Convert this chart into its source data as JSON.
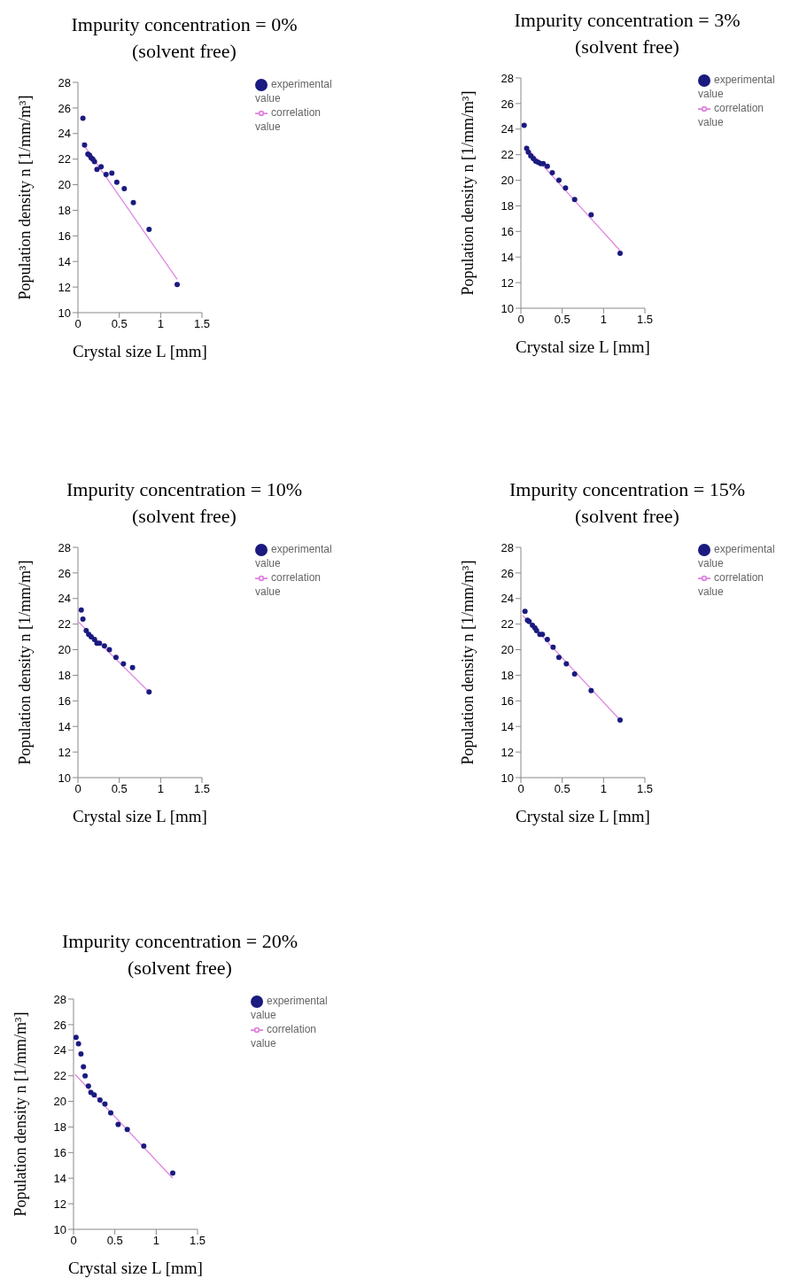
{
  "chart_data": [
    {
      "type": "scatter",
      "title": "Impurity concentration = 0%",
      "subtitle": "(solvent free)",
      "xlabel": "Crystal size L [mm]",
      "ylabel": "Population density n  [1/mm/m³]",
      "xlim": [
        0,
        1.5
      ],
      "xticks": [
        0,
        0.5,
        1,
        1.5
      ],
      "ylim": [
        10,
        28
      ],
      "yticks": [
        10,
        12,
        14,
        16,
        18,
        20,
        22,
        24,
        26,
        28
      ],
      "grid": false,
      "legend": "top right",
      "series": [
        {
          "name": "experimental value",
          "marker": "circle",
          "color": "#1a1a80",
          "x": [
            0.06,
            0.08,
            0.12,
            0.14,
            0.16,
            0.18,
            0.2,
            0.23,
            0.28,
            0.34,
            0.41,
            0.47,
            0.56,
            0.67,
            0.86,
            1.2
          ],
          "values": [
            25.2,
            23.1,
            22.4,
            22.3,
            22.1,
            22.0,
            21.8,
            21.2,
            21.4,
            20.8,
            20.9,
            20.2,
            19.7,
            18.6,
            16.5,
            12.2
          ]
        },
        {
          "name": "correlation value",
          "type": "line",
          "marker": "none",
          "color": "#e080e0",
          "x": [
            0.05,
            1.2
          ],
          "values": [
            23.3,
            12.6
          ]
        }
      ]
    },
    {
      "type": "scatter",
      "title": "Impurity concentration = 3%",
      "subtitle": "(solvent free)",
      "xlabel": "Crystal size L [mm]",
      "ylabel": "Population density n  [1/mm/m³]",
      "xlim": [
        0,
        1.5
      ],
      "xticks": [
        0,
        0.5,
        1,
        1.5
      ],
      "ylim": [
        10,
        28
      ],
      "yticks": [
        10,
        12,
        14,
        16,
        18,
        20,
        22,
        24,
        26,
        28
      ],
      "grid": false,
      "legend": "top right",
      "series": [
        {
          "name": "experimental value",
          "marker": "circle",
          "color": "#1a1a80",
          "x": [
            0.04,
            0.07,
            0.09,
            0.12,
            0.15,
            0.18,
            0.21,
            0.24,
            0.27,
            0.32,
            0.38,
            0.46,
            0.54,
            0.65,
            0.85,
            1.2
          ],
          "values": [
            24.3,
            22.5,
            22.2,
            21.9,
            21.7,
            21.5,
            21.4,
            21.3,
            21.3,
            21.1,
            20.6,
            20.0,
            19.4,
            18.5,
            17.3,
            14.3
          ]
        },
        {
          "name": "correlation value",
          "type": "line",
          "marker": "none",
          "color": "#e080e0",
          "x": [
            0.05,
            1.2
          ],
          "values": [
            22.7,
            14.5
          ]
        }
      ]
    },
    {
      "type": "scatter",
      "title": "Impurity concentration = 10%",
      "subtitle": "(solvent free)",
      "xlabel": "Crystal size L [mm]",
      "ylabel": "Population density n  [1/mm/m³]",
      "xlim": [
        0,
        1.5
      ],
      "xticks": [
        0,
        0.5,
        1,
        1.5
      ],
      "ylim": [
        10,
        28
      ],
      "yticks": [
        10,
        12,
        14,
        16,
        18,
        20,
        22,
        24,
        26,
        28
      ],
      "grid": false,
      "legend": "top right",
      "series": [
        {
          "name": "experimental value",
          "marker": "circle",
          "color": "#1a1a80",
          "x": [
            0.04,
            0.06,
            0.1,
            0.13,
            0.16,
            0.2,
            0.23,
            0.26,
            0.32,
            0.38,
            0.46,
            0.55,
            0.66,
            0.86
          ],
          "values": [
            23.1,
            22.4,
            21.5,
            21.2,
            21.0,
            20.8,
            20.5,
            20.5,
            20.3,
            20.0,
            19.4,
            18.9,
            18.6,
            16.7
          ]
        },
        {
          "name": "correlation value",
          "type": "line",
          "marker": "none",
          "color": "#e080e0",
          "x": [
            0,
            0.86
          ],
          "values": [
            22.2,
            16.7
          ]
        }
      ]
    },
    {
      "type": "scatter",
      "title": "Impurity concentration = 15%",
      "subtitle": "(solvent free)",
      "xlabel": "Crystal size L [mm]",
      "ylabel": "Population density n  [1/mm/m³]",
      "xlim": [
        0,
        1.5
      ],
      "xticks": [
        0,
        0.5,
        1,
        1.5
      ],
      "ylim": [
        10,
        28
      ],
      "yticks": [
        10,
        12,
        14,
        16,
        18,
        20,
        22,
        24,
        26,
        28
      ],
      "grid": false,
      "legend": "top right",
      "series": [
        {
          "name": "experimental value",
          "marker": "circle",
          "color": "#1a1a80",
          "x": [
            0.05,
            0.08,
            0.1,
            0.14,
            0.17,
            0.19,
            0.23,
            0.26,
            0.32,
            0.39,
            0.46,
            0.55,
            0.65,
            0.85,
            1.2
          ],
          "values": [
            23.0,
            22.3,
            22.2,
            21.9,
            21.7,
            21.5,
            21.2,
            21.2,
            20.8,
            20.2,
            19.4,
            18.9,
            18.1,
            16.8,
            14.5
          ]
        },
        {
          "name": "correlation value",
          "type": "line",
          "marker": "none",
          "color": "#e080e0",
          "x": [
            0.02,
            1.2
          ],
          "values": [
            22.7,
            14.5
          ]
        }
      ]
    },
    {
      "type": "scatter",
      "title": "Impurity concentration = 20%",
      "subtitle": "(solvent free)",
      "xlabel": "Crystal size L [mm]",
      "ylabel": "Population density n  [1/mm/m³]",
      "xlim": [
        0,
        1.5
      ],
      "xticks": [
        0,
        0.5,
        1,
        1.5
      ],
      "ylim": [
        10,
        28
      ],
      "yticks": [
        10,
        12,
        14,
        16,
        18,
        20,
        22,
        24,
        26,
        28
      ],
      "grid": false,
      "legend": "top right",
      "series": [
        {
          "name": "experimental value",
          "marker": "circle",
          "color": "#1a1a80",
          "x": [
            0.03,
            0.06,
            0.09,
            0.12,
            0.14,
            0.18,
            0.21,
            0.25,
            0.32,
            0.38,
            0.45,
            0.54,
            0.65,
            0.85,
            1.2
          ],
          "values": [
            25.0,
            24.5,
            23.7,
            22.7,
            22.0,
            21.2,
            20.7,
            20.5,
            20.1,
            19.8,
            19.1,
            18.2,
            17.8,
            16.5,
            14.4
          ]
        },
        {
          "name": "correlation value",
          "type": "line",
          "marker": "none",
          "color": "#e080e0",
          "x": [
            0.02,
            1.2
          ],
          "values": [
            22.1,
            14.0
          ]
        }
      ]
    }
  ]
}
